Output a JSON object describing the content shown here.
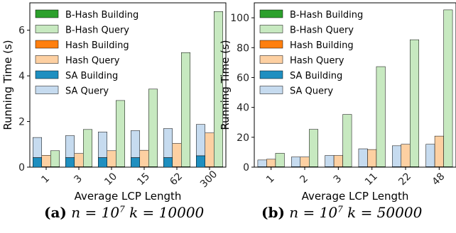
{
  "colors": {
    "bhash_build": "#2ca02c",
    "bhash_query": "#c7e9c0",
    "hash_build": "#ff7f0e",
    "hash_query": "#fdd0a2",
    "sa_build": "#1f8fc0",
    "sa_query": "#c6dbef"
  },
  "legend": [
    "B-Hash Building",
    "B-Hash Query",
    "Hash Building",
    "Hash Query",
    "SA Building",
    "SA Query"
  ],
  "captions": [
    {
      "label": "(a)",
      "n": "n = 10",
      "n_exp": "7",
      "k": "k = 10000"
    },
    {
      "label": "(b)",
      "n": "n = 10",
      "n_exp": "7",
      "k": "k = 50000"
    }
  ],
  "chart_data": [
    {
      "type": "bar",
      "xlabel": "Average LCP Length",
      "ylabel": "Running Time (s)",
      "categories": [
        "1",
        "3",
        "10",
        "15",
        "62",
        "300"
      ],
      "ylim": [
        0,
        7.2
      ],
      "yticks": [
        0,
        2,
        4,
        6
      ],
      "grid": false,
      "legend_position": "top-left",
      "series": [
        {
          "name": "B-Hash Building",
          "values": [
            0.02,
            0.02,
            0.02,
            0.02,
            0.02,
            0.02
          ]
        },
        {
          "name": "B-Hash Query",
          "values": [
            0.7,
            1.63,
            2.9,
            3.4,
            5.0,
            6.8
          ]
        },
        {
          "name": "Hash Building",
          "values": [
            0.02,
            0.02,
            0.02,
            0.02,
            0.02,
            0.02
          ]
        },
        {
          "name": "Hash Query",
          "values": [
            0.5,
            0.58,
            0.7,
            0.72,
            1.02,
            1.48
          ]
        },
        {
          "name": "SA Building",
          "values": [
            0.42,
            0.42,
            0.42,
            0.42,
            0.42,
            0.5
          ]
        },
        {
          "name": "SA Query",
          "values": [
            0.88,
            0.96,
            1.12,
            1.18,
            1.27,
            1.37
          ]
        }
      ]
    },
    {
      "type": "bar",
      "xlabel": "Average LCP Length",
      "ylabel": "Running Time (s)",
      "categories": [
        "1",
        "2",
        "3",
        "11",
        "22",
        "48"
      ],
      "ylim": [
        0,
        110
      ],
      "yticks": [
        0,
        20,
        40,
        60,
        80,
        100
      ],
      "grid": false,
      "legend_position": "top-left",
      "series": [
        {
          "name": "B-Hash Building",
          "values": [
            0.3,
            0.3,
            0.3,
            0.3,
            0.3,
            0.3
          ]
        },
        {
          "name": "B-Hash Query",
          "values": [
            9,
            25,
            35,
            67,
            85,
            105
          ]
        },
        {
          "name": "Hash Building",
          "values": [
            0.3,
            0.3,
            0.3,
            0.3,
            0.3,
            0.3
          ]
        },
        {
          "name": "Hash Query",
          "values": [
            5,
            6.5,
            7.5,
            11.5,
            15,
            20.5
          ]
        },
        {
          "name": "SA Building",
          "values": [
            0.3,
            0.3,
            0.3,
            0.3,
            0.3,
            0.3
          ]
        },
        {
          "name": "SA Query",
          "values": [
            4.5,
            6.5,
            7.5,
            12,
            14,
            15
          ]
        }
      ]
    }
  ]
}
